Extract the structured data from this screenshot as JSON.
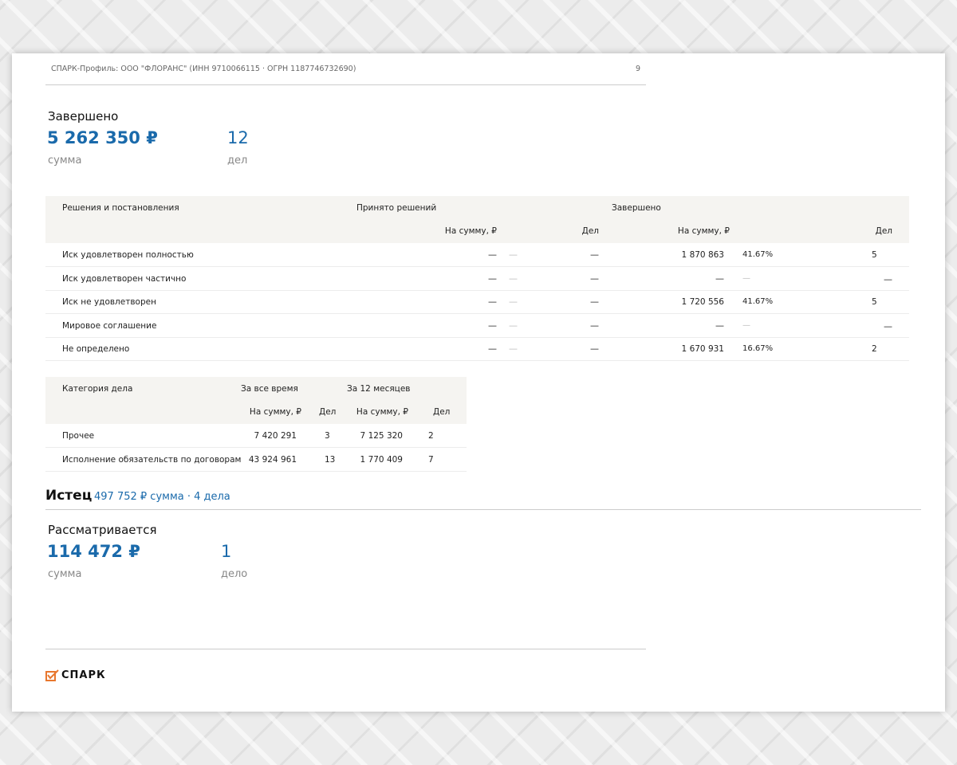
{
  "header": {
    "title": "СПАРК-Профиль: ООО \"ФЛОРАНС\" (ИНН 9710066115 · ОГРН 1187746732690)",
    "page_number": "9"
  },
  "completed": {
    "title": "Завершено",
    "sum": "5 262 350 ₽",
    "sum_label": "сумма",
    "count": "12",
    "count_label": "дел"
  },
  "decisions_table": {
    "col_label": "Решения и постановления",
    "group1": "Принято решений",
    "group2": "Завершено",
    "sub_sum": "На сумму, ₽",
    "sub_count": "Дел",
    "rows": [
      {
        "label": "Иск удовлетворен полностью",
        "acc_sum": "—",
        "acc_pct": "—",
        "acc_count": "—",
        "done_sum": "1 870 863",
        "done_pct": "41.67%",
        "done_count": "5"
      },
      {
        "label": "Иск удовлетворен частично",
        "acc_sum": "—",
        "acc_pct": "—",
        "acc_count": "—",
        "done_sum": "—",
        "done_pct": "—",
        "done_count": "—"
      },
      {
        "label": "Иск не удовлетворен",
        "acc_sum": "—",
        "acc_pct": "—",
        "acc_count": "—",
        "done_sum": "1 720 556",
        "done_pct": "41.67%",
        "done_count": "5"
      },
      {
        "label": "Мировое соглашение",
        "acc_sum": "—",
        "acc_pct": "—",
        "acc_count": "—",
        "done_sum": "—",
        "done_pct": "—",
        "done_count": "—"
      },
      {
        "label": "Не определено",
        "acc_sum": "—",
        "acc_pct": "—",
        "acc_count": "—",
        "done_sum": "1 670 931",
        "done_pct": "16.67%",
        "done_count": "2"
      }
    ]
  },
  "category_table": {
    "col_label": "Категория дела",
    "group1": "За все время",
    "group2": "За 12 месяцев",
    "sub_sum": "На сумму, ₽",
    "sub_count": "Дел",
    "rows": [
      {
        "label": "Прочее",
        "all_sum": "7 420 291",
        "all_count": "3",
        "y_sum": "7 125 320",
        "y_count": "2"
      },
      {
        "label": "Исполнение обязательств по договорам",
        "all_sum": "43 924 961",
        "all_count": "13",
        "y_sum": "1 770 409",
        "y_count": "7"
      }
    ]
  },
  "plaintiff": {
    "title": "Истец",
    "summary": "497 752 ₽ сумма · 4 дела"
  },
  "pending": {
    "title": "Рассматривается",
    "sum": "114 472 ₽",
    "sum_label": "сумма",
    "count": "1",
    "count_label": "дело"
  },
  "footer": {
    "logo": "СПАРК",
    "logo_color": "#e8772e"
  },
  "colors": {
    "accent": "#1a6aab",
    "header_bg": "#f5f4f1"
  }
}
